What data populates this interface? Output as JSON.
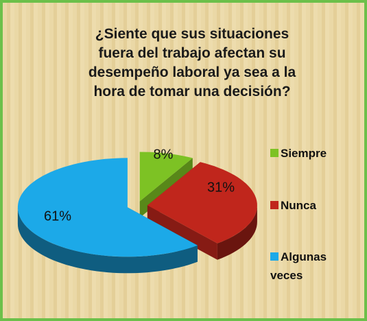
{
  "chart_data": {
    "type": "pie",
    "title_lines": [
      "¿Siente que sus situaciones",
      "fuera del trabajo afectan su",
      "desempeño laboral ya sea a la",
      "hora de tomar una decisión?"
    ],
    "categories": [
      "Siempre",
      "Nunca",
      "Algunas veces"
    ],
    "values": [
      8,
      31,
      61
    ],
    "value_labels": [
      "8%",
      "31%",
      "61%"
    ],
    "colors": [
      "#7dc224",
      "#c0261c",
      "#1ca9e8"
    ],
    "legend": "right"
  }
}
